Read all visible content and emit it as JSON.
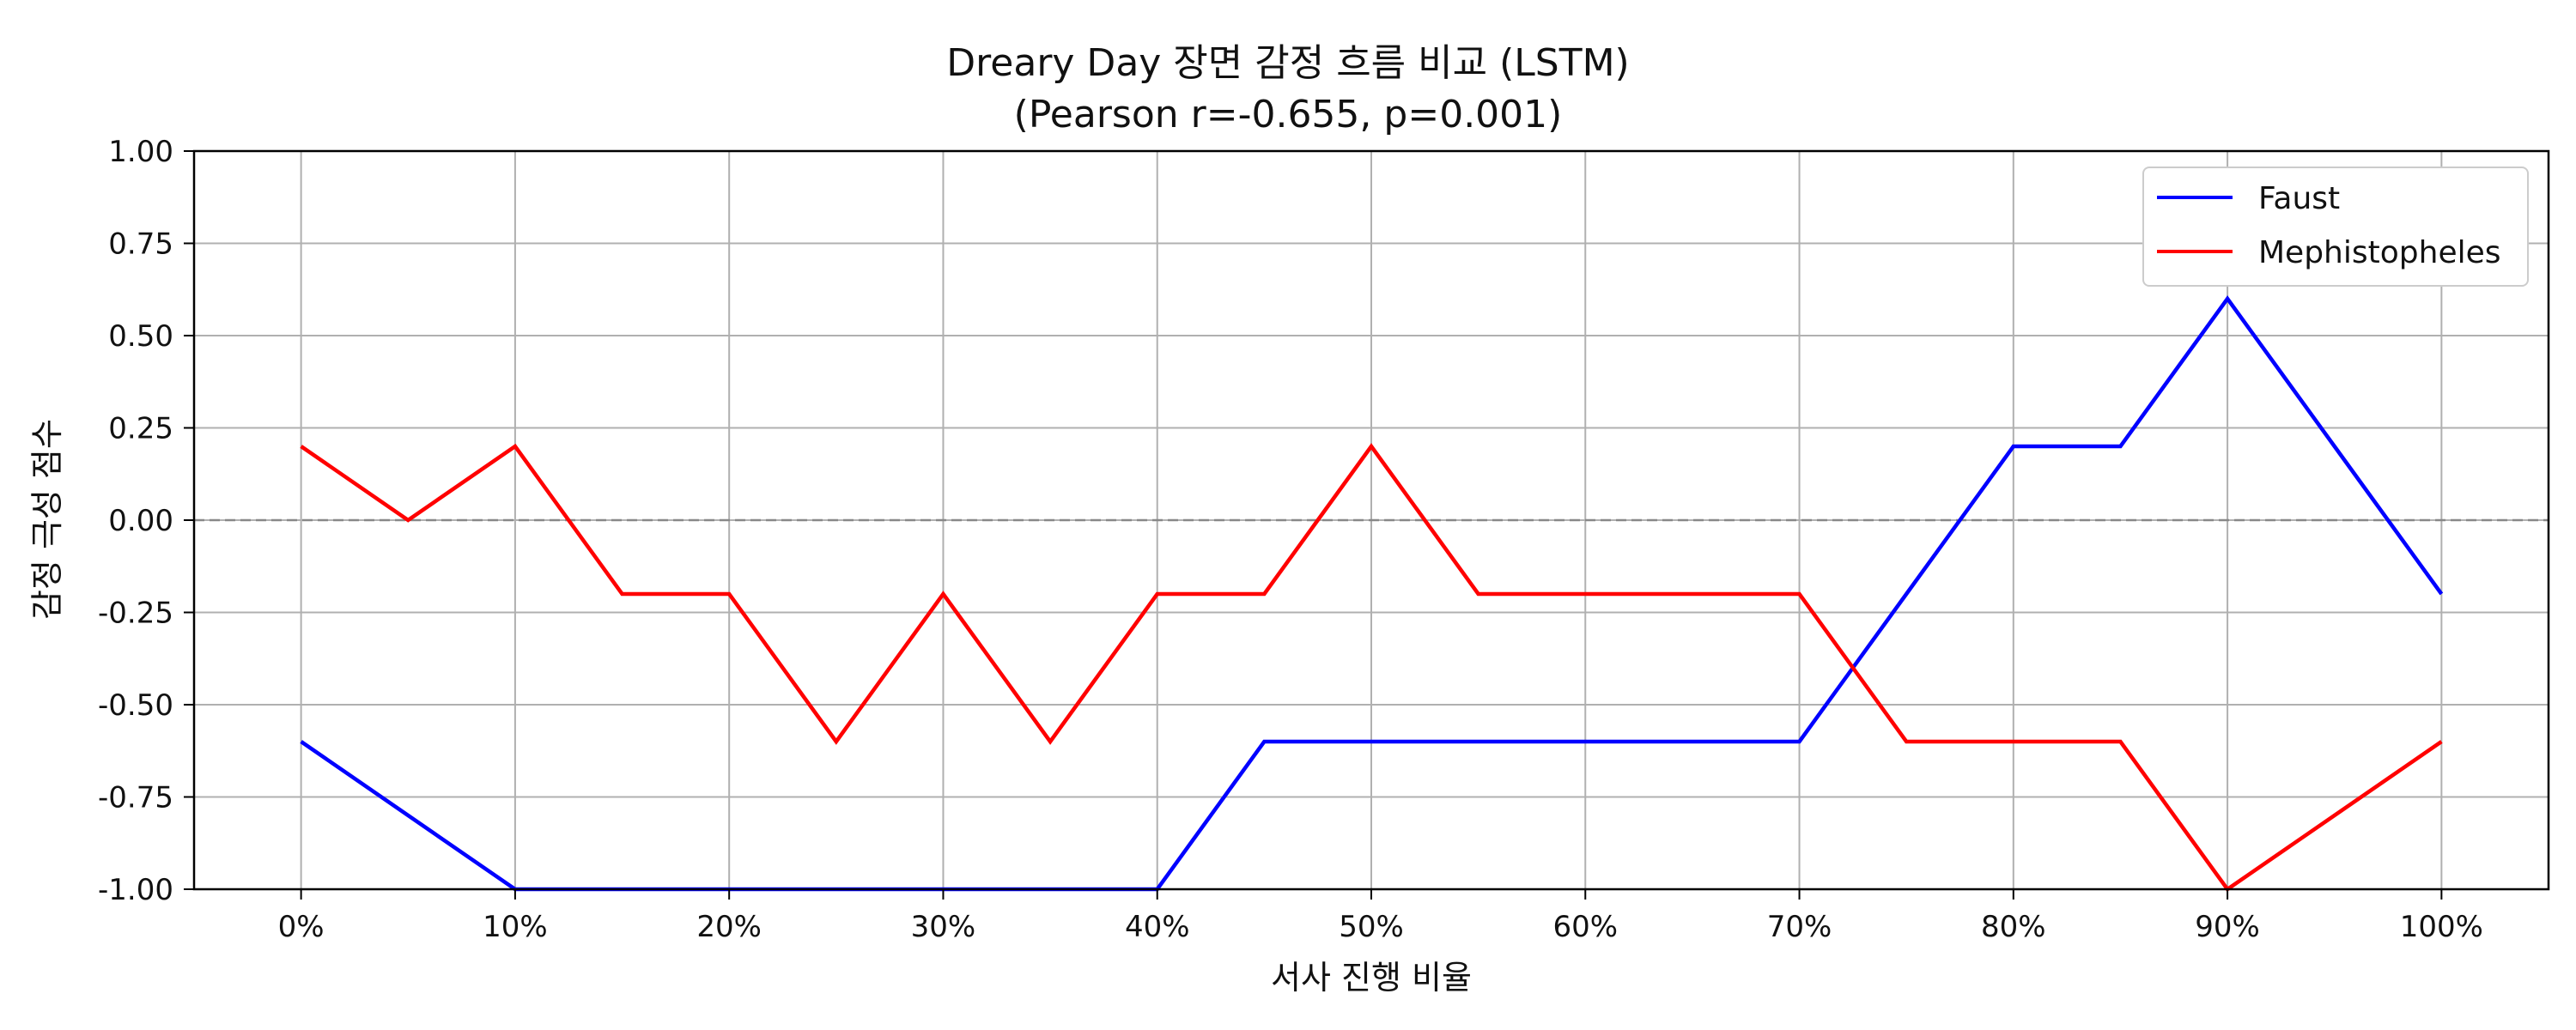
{
  "chart_data": {
    "type": "line",
    "title": "Dreary Day 장면 감정 흐름 비교 (LSTM)",
    "subtitle": "(Pearson r=-0.655, p=0.001)",
    "xlabel": "서사 진행 비율",
    "ylabel": "감정 극성 점수",
    "x": [
      0,
      5,
      10,
      15,
      20,
      25,
      30,
      35,
      40,
      45,
      50,
      55,
      60,
      65,
      70,
      75,
      80,
      85,
      90,
      95,
      100
    ],
    "xticks": [
      0,
      10,
      20,
      30,
      40,
      50,
      60,
      70,
      80,
      90,
      100
    ],
    "xtick_labels": [
      "0%",
      "10%",
      "20%",
      "30%",
      "40%",
      "50%",
      "60%",
      "70%",
      "80%",
      "90%",
      "100%"
    ],
    "yticks": [
      1.0,
      0.75,
      0.5,
      0.25,
      0.0,
      -0.25,
      -0.5,
      -0.75,
      -1.0
    ],
    "ytick_labels": [
      "1.00",
      "0.75",
      "0.50",
      "0.25",
      "0.00",
      "-0.25",
      "-0.50",
      "-0.75",
      "-1.00"
    ],
    "xlim": [
      -5,
      105
    ],
    "ylim": [
      -1.0,
      1.0
    ],
    "grid": true,
    "reference_line": {
      "y": 0.0,
      "style": "dashed",
      "color": "#888888"
    },
    "legend_position": "top-right",
    "series": [
      {
        "name": "Faust",
        "color": "#0000ff",
        "values": [
          -0.6,
          -0.8,
          -1.0,
          -1.0,
          -1.0,
          -1.0,
          -1.0,
          -1.0,
          -1.0,
          -0.6,
          -0.6,
          -0.6,
          -0.6,
          -0.6,
          -0.6,
          -0.2,
          0.2,
          0.2,
          0.6,
          0.2,
          -0.2
        ]
      },
      {
        "name": "Mephistopheles",
        "color": "#ff0000",
        "values": [
          0.2,
          0.0,
          0.2,
          -0.2,
          -0.2,
          -0.6,
          -0.2,
          -0.6,
          -0.2,
          -0.2,
          0.2,
          -0.2,
          -0.2,
          -0.2,
          -0.2,
          -0.6,
          -0.6,
          -0.6,
          -1.0,
          -0.8,
          -0.6
        ]
      }
    ]
  }
}
